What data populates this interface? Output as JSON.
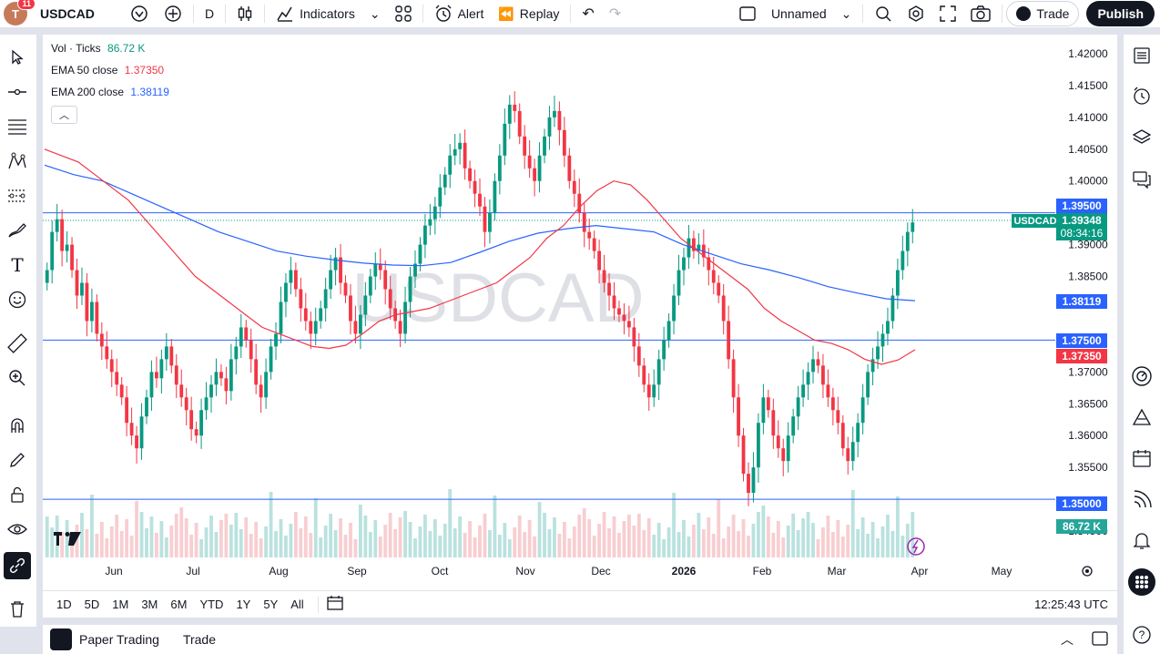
{
  "topbar": {
    "notifications": "11",
    "avatar_letter": "T",
    "symbol": "USDCAD",
    "interval": "D",
    "indicators": "Indicators",
    "alert": "Alert",
    "replay": "Replay",
    "layout_name": "Unnamed",
    "trade": "Trade",
    "publish": "Publish"
  },
  "legend": {
    "vol_label": "Vol · Ticks",
    "vol_value": "86.72 K",
    "ema50_label": "EMA 50 close",
    "ema50_value": "1.37350",
    "ema200_label": "EMA 200 close",
    "ema200_value": "1.38119"
  },
  "watermark": "USDCAD",
  "price_scale": {
    "ticks": [
      "1.42000",
      "1.41500",
      "1.41000",
      "1.40500",
      "1.40000",
      "1.39000",
      "1.38500",
      "1.37000",
      "1.36500",
      "1.36000",
      "1.35500",
      "1.34500"
    ],
    "tags": {
      "line_1_395": "1.39500",
      "symbol": "USDCAD",
      "last": "1.39348",
      "countdown": "08:34:16",
      "ema200": "1.38119",
      "line_1_375": "1.37500",
      "ema50": "1.37350",
      "line_1_35": "1.35000",
      "volume": "86.72 K"
    }
  },
  "time_axis": [
    "Jun",
    "Jul",
    "Aug",
    "Sep",
    "Oct",
    "Nov",
    "Dec",
    "2026",
    "Feb",
    "Mar",
    "Apr",
    "May"
  ],
  "timeframes": [
    "1D",
    "5D",
    "1M",
    "3M",
    "6M",
    "YTD",
    "1Y",
    "5Y",
    "All"
  ],
  "clock": "12:25:43 UTC",
  "bottombar": {
    "paper_trading": "Paper Trading",
    "trade_tab": "Trade"
  },
  "colors": {
    "up": "#089981",
    "down": "#f23645",
    "ema50": "#f23645",
    "ema200": "#2962ff",
    "hline": "#2962ff"
  },
  "chart_data": {
    "type": "candlestick",
    "series": [
      {
        "name": "EMA 50 close",
        "color": "#f23645"
      },
      {
        "name": "EMA 200 close",
        "color": "#2962ff"
      },
      {
        "name": "Vol · Ticks"
      }
    ],
    "ylim": [
      1.344,
      1.421
    ],
    "horizontal_lines": [
      1.395,
      1.375,
      1.35
    ],
    "close_series": [
      1.386,
      1.392,
      1.394,
      1.389,
      1.39,
      1.386,
      1.382,
      1.384,
      1.378,
      1.381,
      1.376,
      1.374,
      1.372,
      1.37,
      1.368,
      1.366,
      1.362,
      1.36,
      1.358,
      1.363,
      1.366,
      1.37,
      1.369,
      1.372,
      1.374,
      1.371,
      1.368,
      1.366,
      1.364,
      1.361,
      1.36,
      1.364,
      1.366,
      1.368,
      1.37,
      1.369,
      1.367,
      1.372,
      1.374,
      1.377,
      1.375,
      1.372,
      1.368,
      1.366,
      1.37,
      1.374,
      1.376,
      1.381,
      1.384,
      1.386,
      1.383,
      1.38,
      1.378,
      1.376,
      1.378,
      1.38,
      1.383,
      1.386,
      1.388,
      1.384,
      1.382,
      1.378,
      1.376,
      1.379,
      1.382,
      1.385,
      1.387,
      1.386,
      1.383,
      1.38,
      1.378,
      1.376,
      1.381,
      1.385,
      1.387,
      1.39,
      1.393,
      1.394,
      1.396,
      1.399,
      1.401,
      1.404,
      1.405,
      1.406,
      1.402,
      1.4,
      1.398,
      1.396,
      1.392,
      1.395,
      1.4,
      1.404,
      1.409,
      1.412,
      1.411,
      1.407,
      1.404,
      1.402,
      1.4,
      1.404,
      1.407,
      1.41,
      1.411,
      1.408,
      1.404,
      1.4,
      1.398,
      1.395,
      1.392,
      1.391,
      1.389,
      1.386,
      1.384,
      1.382,
      1.38,
      1.379,
      1.378,
      1.377,
      1.374,
      1.371,
      1.368,
      1.366,
      1.368,
      1.372,
      1.375,
      1.378,
      1.382,
      1.386,
      1.388,
      1.391,
      1.389,
      1.39,
      1.388,
      1.386,
      1.384,
      1.382,
      1.378,
      1.372,
      1.366,
      1.36,
      1.354,
      1.351,
      1.355,
      1.362,
      1.366,
      1.364,
      1.36,
      1.358,
      1.356,
      1.36,
      1.363,
      1.366,
      1.368,
      1.37,
      1.372,
      1.371,
      1.368,
      1.366,
      1.364,
      1.362,
      1.358,
      1.356,
      1.359,
      1.362,
      1.366,
      1.37,
      1.372,
      1.374,
      1.376,
      1.378,
      1.382,
      1.386,
      1.389,
      1.392,
      1.3935
    ],
    "ema50_series": [
      1.405,
      1.404,
      1.403,
      1.401,
      1.399,
      1.397,
      1.394,
      1.391,
      1.388,
      1.385,
      1.383,
      1.381,
      1.379,
      1.377,
      1.376,
      1.375,
      1.374,
      1.3737,
      1.3742,
      1.376,
      1.378,
      1.379,
      1.3795,
      1.38,
      1.381,
      1.382,
      1.383,
      1.384,
      1.386,
      1.388,
      1.391,
      1.393,
      1.396,
      1.3985,
      1.4,
      1.3994,
      1.397,
      1.394,
      1.391,
      1.389,
      1.387,
      1.385,
      1.383,
      1.38,
      1.378,
      1.3765,
      1.375,
      1.3745,
      1.3735,
      1.372,
      1.3712,
      1.3719,
      1.3735
    ],
    "ema200_series": [
      1.4025,
      1.401,
      1.4,
      1.398,
      1.396,
      1.394,
      1.392,
      1.3905,
      1.389,
      1.3882,
      1.3876,
      1.3871,
      1.3868,
      1.3867,
      1.3872,
      1.3888,
      1.3905,
      1.3918,
      1.3925,
      1.393,
      1.3925,
      1.392,
      1.39,
      1.3885,
      1.387,
      1.386,
      1.3848,
      1.3834,
      1.3824,
      1.3815,
      1.3812
    ],
    "xlabels": [
      "Jun",
      "Jul",
      "Aug",
      "Sep",
      "Oct",
      "Nov",
      "Dec",
      "2026",
      "Feb",
      "Mar",
      "Apr",
      "May"
    ]
  }
}
